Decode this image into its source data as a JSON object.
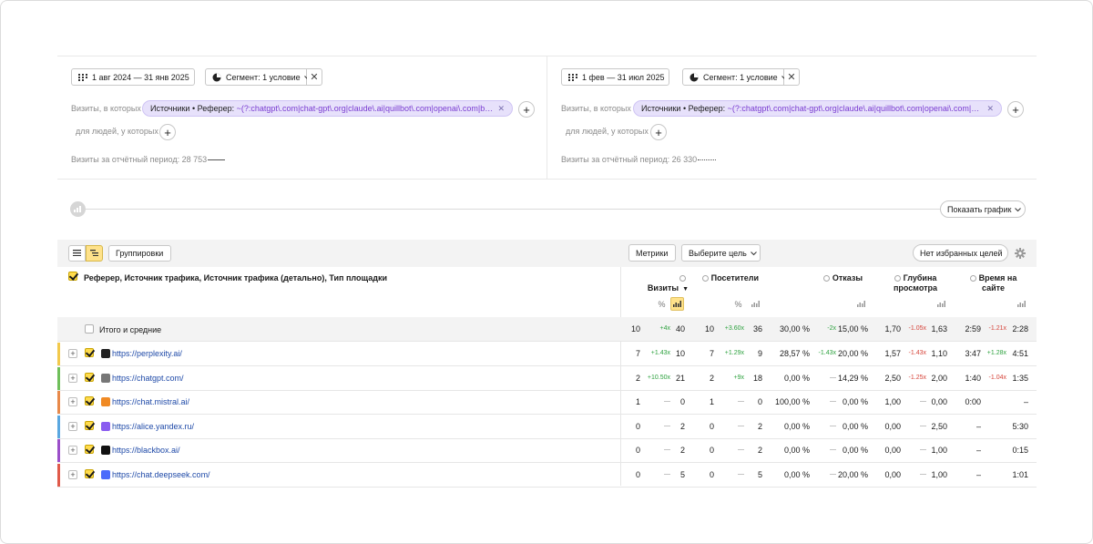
{
  "left": {
    "date_range": "1 авг 2024 — 31 янв 2025",
    "segment": "Сегмент: 1 условие",
    "visits_where": "Визиты, в которых",
    "filter_key": "Источники • Реферер:",
    "filter_value": "~(?:chatgpt\\.com|chat-gpt\\.org|claude\\.ai|quillbot\\.com|openai\\.com|blac...",
    "people_where": "для людей, у которых",
    "period_visits": "Визиты за отчётный период: 28 753"
  },
  "right": {
    "date_range": "1 фев — 31 июл 2025",
    "segment": "Сегмент: 1 условие",
    "visits_where": "Визиты, в которых",
    "filter_key": "Источники • Реферер:",
    "filter_value": "~(?:chatgpt\\.com|chat-gpt\\.org|claude\\.ai|quillbot\\.com|openai\\.com|bla...",
    "people_where": "для людей, у которых",
    "period_visits": "Визиты за отчётный период: 26 330"
  },
  "chart_toggle": "Показать график",
  "toolbar": {
    "groupings": "Группировки",
    "metrics": "Метрики",
    "choose_goal": "Выберите цель",
    "no_goals": "Нет избранных целей"
  },
  "dimension_header": "Реферер, Источник трафика, Источник трафика (детально), Тип площадки",
  "metrics": [
    {
      "name": "Визиты",
      "sort": "▼"
    },
    {
      "name": "Посетители",
      "sort": ""
    },
    {
      "name": "Отказы",
      "sort": ""
    },
    {
      "name": "Глубина\nпросмотра",
      "sort": ""
    },
    {
      "name": "Время на\nсайте",
      "sort": ""
    }
  ],
  "total": {
    "label": "Итого и средние",
    "cells": [
      {
        "a": "10",
        "d": "+4x",
        "t": "up",
        "b": "40"
      },
      {
        "a": "10",
        "d": "+3.60x",
        "t": "up",
        "b": "36"
      },
      {
        "a": "30,00 %",
        "d": "-2x",
        "t": "up",
        "b": "15,00 %"
      },
      {
        "a": "1,70",
        "d": "-1.05x",
        "t": "dn",
        "b": "1,63"
      },
      {
        "a": "2:59",
        "d": "-1.21x",
        "t": "dn",
        "b": "2:28"
      }
    ]
  },
  "rows": [
    {
      "name": "https://perplexity.ai/",
      "stripe": "#f2c94c",
      "fav": "#222222",
      "cells": [
        {
          "a": "7",
          "d": "+1.43x",
          "t": "up",
          "b": "10"
        },
        {
          "a": "7",
          "d": "+1.29x",
          "t": "up",
          "b": "9"
        },
        {
          "a": "28,57 %",
          "d": "-1.43x",
          "t": "up",
          "b": "20,00 %"
        },
        {
          "a": "1,57",
          "d": "-1.43x",
          "t": "dn",
          "b": "1,10"
        },
        {
          "a": "3:47",
          "d": "+1.28x",
          "t": "up",
          "b": "4:51"
        }
      ]
    },
    {
      "name": "https://chatgpt.com/",
      "stripe": "#6fbf5a",
      "fav": "#777777",
      "cells": [
        {
          "a": "2",
          "d": "+10.50x",
          "t": "up",
          "b": "21"
        },
        {
          "a": "2",
          "d": "+9x",
          "t": "up",
          "b": "18"
        },
        {
          "a": "0,00 %",
          "d": "—",
          "t": "eq",
          "b": "14,29 %"
        },
        {
          "a": "2,50",
          "d": "-1.25x",
          "t": "dn",
          "b": "2,00"
        },
        {
          "a": "1:40",
          "d": "-1.04x",
          "t": "dn",
          "b": "1:35"
        }
      ]
    },
    {
      "name": "https://chat.mistral.ai/",
      "stripe": "#e8894a",
      "fav": "#f08a24",
      "cells": [
        {
          "a": "1",
          "d": "—",
          "t": "eq",
          "b": "0"
        },
        {
          "a": "1",
          "d": "—",
          "t": "eq",
          "b": "0"
        },
        {
          "a": "100,00 %",
          "d": "—",
          "t": "eq",
          "b": "0,00 %"
        },
        {
          "a": "1,00",
          "d": "—",
          "t": "eq",
          "b": "0,00"
        },
        {
          "a": "0:00",
          "d": "",
          "t": "eq",
          "b": "–"
        }
      ]
    },
    {
      "name": "https://alice.yandex.ru/",
      "stripe": "#5aa7e0",
      "fav": "#8a5cf0",
      "cells": [
        {
          "a": "0",
          "d": "—",
          "t": "eq",
          "b": "2"
        },
        {
          "a": "0",
          "d": "—",
          "t": "eq",
          "b": "2"
        },
        {
          "a": "0,00 %",
          "d": "—",
          "t": "eq",
          "b": "0,00 %"
        },
        {
          "a": "0,00",
          "d": "—",
          "t": "eq",
          "b": "2,50"
        },
        {
          "a": "–",
          "d": "",
          "t": "eq",
          "b": "5:30"
        }
      ]
    },
    {
      "name": "https://blackbox.ai/",
      "stripe": "#9b4fc9",
      "fav": "#111111",
      "cells": [
        {
          "a": "0",
          "d": "—",
          "t": "eq",
          "b": "2"
        },
        {
          "a": "0",
          "d": "—",
          "t": "eq",
          "b": "2"
        },
        {
          "a": "0,00 %",
          "d": "—",
          "t": "eq",
          "b": "0,00 %"
        },
        {
          "a": "0,00",
          "d": "—",
          "t": "eq",
          "b": "1,00"
        },
        {
          "a": "–",
          "d": "",
          "t": "eq",
          "b": "0:15"
        }
      ]
    },
    {
      "name": "https://chat.deepseek.com/",
      "stripe": "#e05a4a",
      "fav": "#4b6bfb",
      "cells": [
        {
          "a": "0",
          "d": "—",
          "t": "eq",
          "b": "5"
        },
        {
          "a": "0",
          "d": "—",
          "t": "eq",
          "b": "5"
        },
        {
          "a": "0,00 %",
          "d": "—",
          "t": "eq",
          "b": "20,00 %"
        },
        {
          "a": "0,00",
          "d": "—",
          "t": "eq",
          "b": "1,00"
        },
        {
          "a": "–",
          "d": "",
          "t": "eq",
          "b": "1:01"
        }
      ]
    }
  ]
}
